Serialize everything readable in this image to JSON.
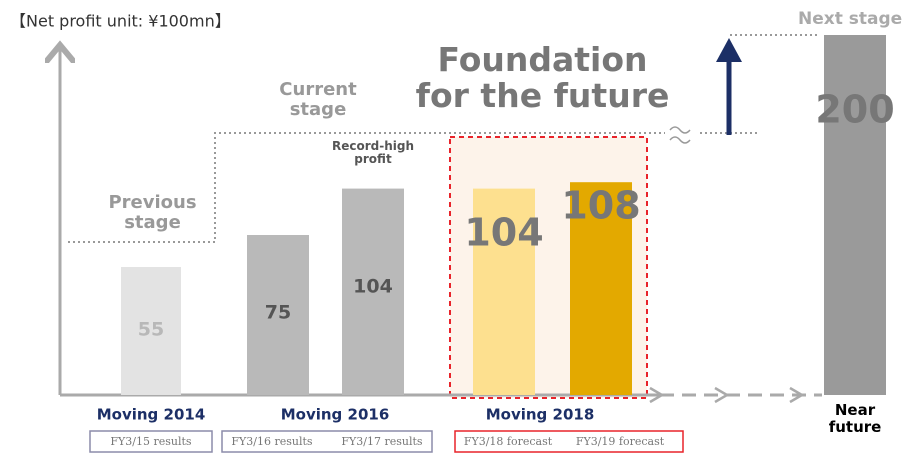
{
  "chart_data": {
    "type": "bar",
    "title": "【Net profit unit: ¥100mn】",
    "categories": [
      "FY3/15 results",
      "FY3/16 results",
      "FY3/17 results",
      "FY3/18 forecast",
      "FY3/19 forecast",
      "Near future"
    ],
    "values": [
      55,
      75,
      104,
      104,
      108,
      200
    ],
    "colors": [
      "#e3e3e3",
      "#b9b9b9",
      "#b9b9b9",
      "#fde08f",
      "#e3a900",
      "#9a9a9a"
    ],
    "groups": [
      "Moving  2014",
      "Moving  2016",
      "Moving  2018"
    ],
    "stages": [
      "Previous stage",
      "Current stage",
      "Next stage"
    ],
    "annotations": [
      "Record-high profit",
      "Foundation for the future"
    ]
  }
}
